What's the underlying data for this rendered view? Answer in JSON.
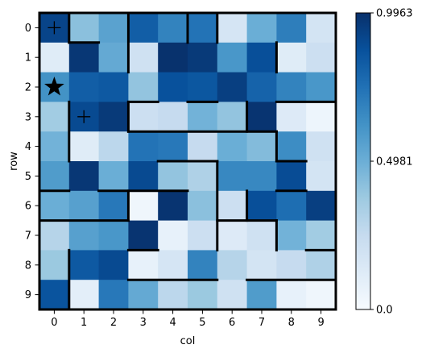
{
  "chart_data": {
    "type": "heatmap",
    "xlabel": "col",
    "ylabel": "row",
    "x_ticks": [
      "0",
      "1",
      "2",
      "3",
      "4",
      "5",
      "6",
      "7",
      "8",
      "9"
    ],
    "y_ticks": [
      "0",
      "1",
      "2",
      "3",
      "4",
      "5",
      "6",
      "7",
      "8",
      "9"
    ],
    "colormap": "Blues",
    "color_range": [
      0.0,
      0.9963
    ],
    "colorbar_ticks": [
      {
        "value": 0.9963,
        "label": "0.9963"
      },
      {
        "value": 0.4981,
        "label": "0.4981"
      },
      {
        "value": 0.0,
        "label": "0.0"
      }
    ],
    "values": [
      [
        0.92,
        0.42,
        0.55,
        0.82,
        0.68,
        0.74,
        0.17,
        0.5,
        0.7,
        0.18
      ],
      [
        0.12,
        0.97,
        0.52,
        0.2,
        0.99,
        0.96,
        0.6,
        0.88,
        0.12,
        0.22
      ],
      [
        0.62,
        0.82,
        0.84,
        0.4,
        0.87,
        0.85,
        0.94,
        0.8,
        0.68,
        0.6
      ],
      [
        0.36,
        0.9,
        0.96,
        0.22,
        0.25,
        0.48,
        0.4,
        0.98,
        0.13,
        0.05
      ],
      [
        0.48,
        0.12,
        0.28,
        0.74,
        0.72,
        0.25,
        0.5,
        0.44,
        0.64,
        0.2
      ],
      [
        0.58,
        0.97,
        0.5,
        0.9,
        0.4,
        0.32,
        0.66,
        0.66,
        0.89,
        0.18
      ],
      [
        0.5,
        0.56,
        0.72,
        0.04,
        0.98,
        0.42,
        0.22,
        0.88,
        0.76,
        0.94
      ],
      [
        0.3,
        0.56,
        0.6,
        0.98,
        0.08,
        0.22,
        0.13,
        0.2,
        0.48,
        0.36
      ],
      [
        0.38,
        0.84,
        0.9,
        0.08,
        0.17,
        0.68,
        0.3,
        0.18,
        0.25,
        0.32
      ],
      [
        0.86,
        0.1,
        0.72,
        0.52,
        0.28,
        0.38,
        0.2,
        0.58,
        0.08,
        0.04
      ]
    ],
    "markers": [
      {
        "type": "plus",
        "row": 0,
        "col": 0
      },
      {
        "type": "star",
        "row": 2,
        "col": 0
      },
      {
        "type": "plus",
        "row": 3,
        "col": 1
      }
    ],
    "walls": {
      "horizontal": [
        {
          "row": 1,
          "from_col": 1,
          "to_col": 2
        },
        {
          "row": 3,
          "from_col": 3,
          "to_col": 4
        },
        {
          "row": 3,
          "from_col": 5,
          "to_col": 6
        },
        {
          "row": 3,
          "from_col": 8,
          "to_col": 10
        },
        {
          "row": 4,
          "from_col": 3,
          "to_col": 8
        },
        {
          "row": 5,
          "from_col": 4,
          "to_col": 6
        },
        {
          "row": 5,
          "from_col": 8,
          "to_col": 9
        },
        {
          "row": 6,
          "from_col": 0,
          "to_col": 1
        },
        {
          "row": 6,
          "from_col": 2,
          "to_col": 5
        },
        {
          "row": 6,
          "from_col": 8,
          "to_col": 9
        },
        {
          "row": 7,
          "from_col": 0,
          "to_col": 3
        },
        {
          "row": 7,
          "from_col": 6,
          "to_col": 8
        },
        {
          "row": 8,
          "from_col": 3,
          "to_col": 4
        },
        {
          "row": 8,
          "from_col": 9,
          "to_col": 10
        },
        {
          "row": 9,
          "from_col": 3,
          "to_col": 6
        },
        {
          "row": 9,
          "from_col": 7,
          "to_col": 10
        }
      ],
      "vertical": [
        {
          "col": 1,
          "from_row": 0,
          "to_row": 1
        },
        {
          "col": 1,
          "from_row": 3,
          "to_row": 5
        },
        {
          "col": 1,
          "from_row": 8,
          "to_row": 10
        },
        {
          "col": 3,
          "from_row": 0,
          "to_row": 2
        },
        {
          "col": 3,
          "from_row": 3,
          "to_row": 4
        },
        {
          "col": 3,
          "from_row": 6,
          "to_row": 7
        },
        {
          "col": 5,
          "from_row": 0,
          "to_row": 1
        },
        {
          "col": 6,
          "from_row": 0,
          "to_row": 1
        },
        {
          "col": 6,
          "from_row": 5,
          "to_row": 8
        },
        {
          "col": 7,
          "from_row": 3,
          "to_row": 4
        },
        {
          "col": 7,
          "from_row": 6,
          "to_row": 7
        },
        {
          "col": 8,
          "from_row": 1,
          "to_row": 2
        },
        {
          "col": 8,
          "from_row": 4,
          "to_row": 5
        },
        {
          "col": 8,
          "from_row": 7,
          "to_row": 8
        }
      ]
    }
  }
}
